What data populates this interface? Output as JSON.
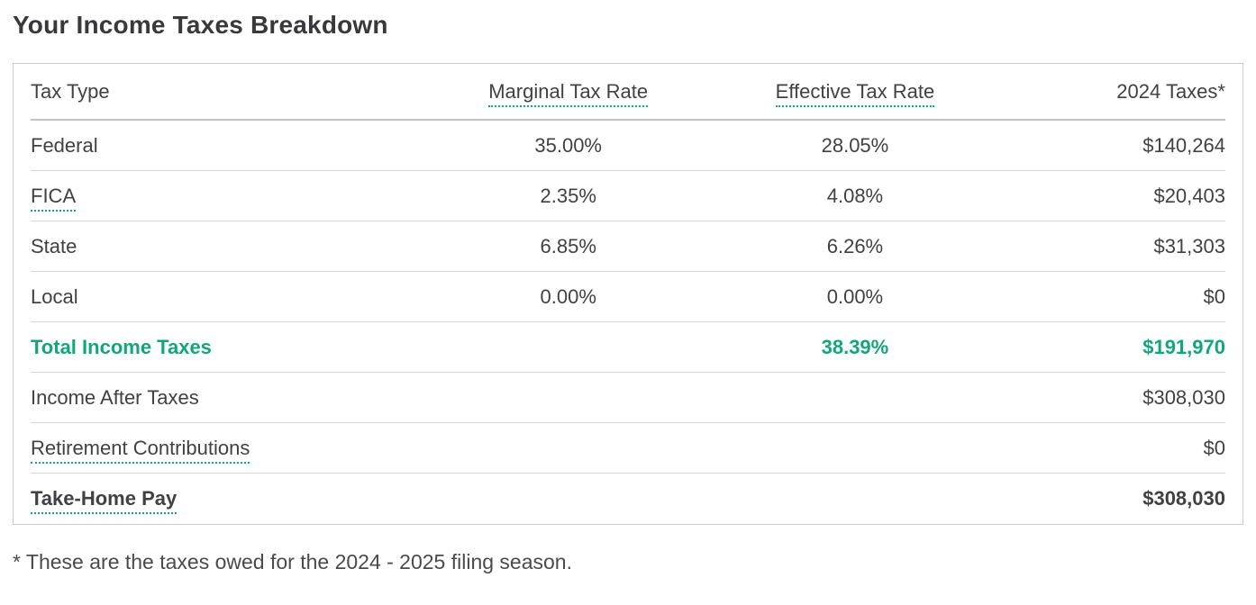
{
  "title": "Your Income Taxes Breakdown",
  "footnote": "* These are the taxes owed for the 2024 - 2025 filing season.",
  "colors": {
    "accent_green": "#12a77b",
    "text_dark": "#414143",
    "border_light": "#d9d9d9"
  },
  "table": {
    "headers": [
      "Tax Type",
      "Marginal Tax Rate",
      "Effective Tax Rate",
      "2024 Taxes*"
    ],
    "rows": [
      {
        "label": "Federal",
        "marginal": "35.00%",
        "effective": "28.05%",
        "amount": "$140,264"
      },
      {
        "label": "FICA",
        "marginal": "2.35%",
        "effective": "4.08%",
        "amount": "$20,403"
      },
      {
        "label": "State",
        "marginal": "6.85%",
        "effective": "6.26%",
        "amount": "$31,303"
      },
      {
        "label": "Local",
        "marginal": "0.00%",
        "effective": "0.00%",
        "amount": "$0"
      },
      {
        "label": "Total Income Taxes",
        "marginal": "",
        "effective": "38.39%",
        "amount": "$191,970"
      },
      {
        "label": "Income After Taxes",
        "marginal": "",
        "effective": "",
        "amount": "$308,030"
      },
      {
        "label": "Retirement Contributions",
        "marginal": "",
        "effective": "",
        "amount": "$0"
      },
      {
        "label": "Take-Home Pay",
        "marginal": "",
        "effective": "",
        "amount": "$308,030"
      }
    ]
  }
}
